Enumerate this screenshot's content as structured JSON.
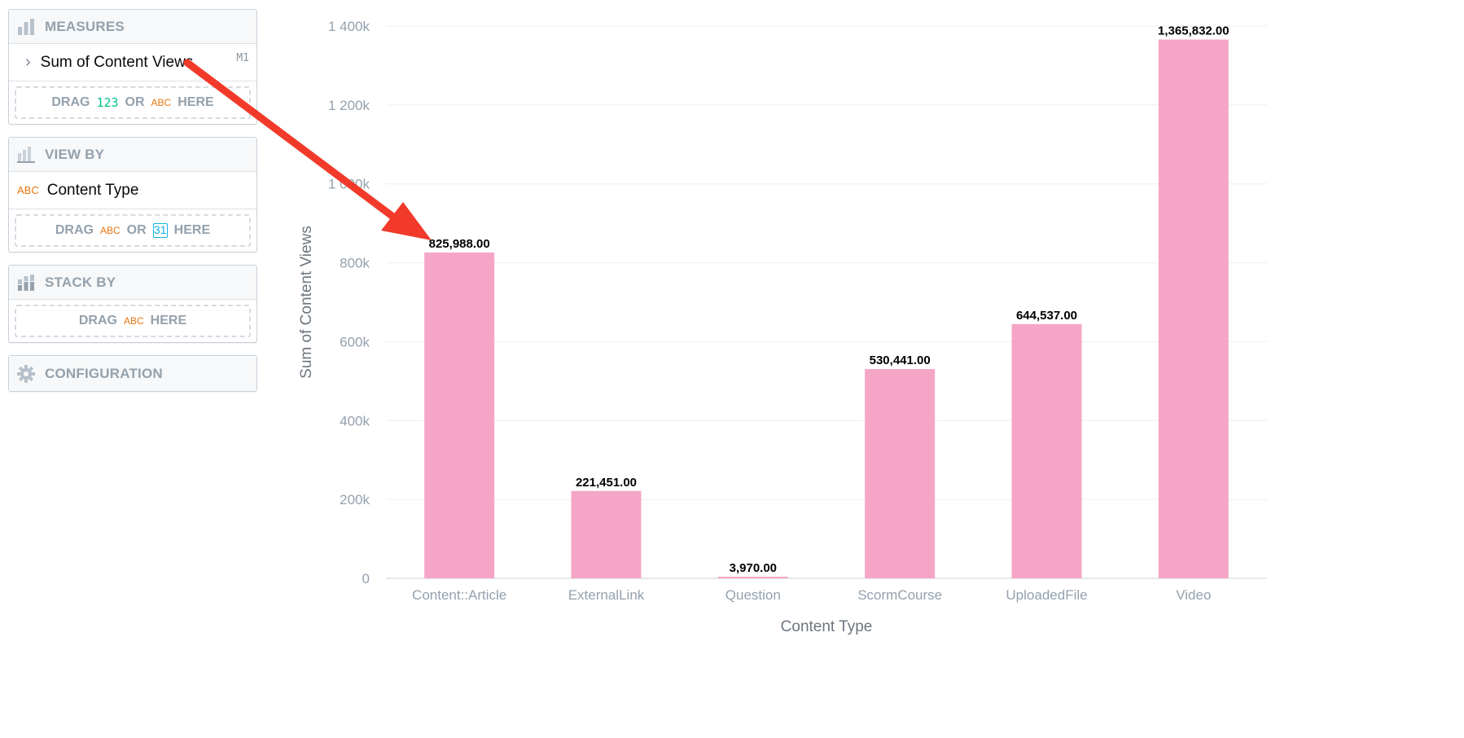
{
  "panel": {
    "measures": {
      "title": "MEASURES",
      "item_label": "Sum of Content Views",
      "item_badge": "M1",
      "drop": {
        "w1": "DRAG",
        "num": "123",
        "w2": "OR",
        "abc": "ABC",
        "w3": "HERE"
      }
    },
    "view_by": {
      "title": "VIEW BY",
      "item_type": "ABC",
      "item_label": "Content Type",
      "drop": {
        "w1": "DRAG",
        "abc": "ABC",
        "w2": "OR",
        "cal": "31",
        "w3": "HERE"
      }
    },
    "stack_by": {
      "title": "STACK BY",
      "drop": {
        "w1": "DRAG",
        "abc": "ABC",
        "w3": "HERE"
      }
    },
    "configuration": {
      "title": "CONFIGURATION"
    }
  },
  "chart_data": {
    "type": "bar",
    "categories": [
      "Content::Article",
      "ExternalLink",
      "Question",
      "ScormCourse",
      "UploadedFile",
      "Video"
    ],
    "values": [
      825988,
      221451,
      3970,
      530441,
      644537,
      1365832
    ],
    "data_labels": [
      "825,988.00",
      "221,451.00",
      "3,970.00",
      "530,441.00",
      "644,537.00",
      "1,365,832.00"
    ],
    "y_ticks": [
      0,
      200000,
      400000,
      600000,
      800000,
      1000000,
      1200000,
      1400000
    ],
    "y_tick_labels": [
      "0",
      "200k",
      "400k",
      "600k",
      "800k",
      "1 000k",
      "1 200k",
      "1 400k"
    ],
    "ylim": [
      0,
      1400000
    ],
    "xlabel": "Content Type",
    "ylabel": "Sum of Content Views",
    "bar_color": "#f5a6c6",
    "grid": true
  },
  "colors": {
    "arrow": "#f23a2a",
    "numeric_accent": "#00c18d",
    "attribute_accent": "#e8750f",
    "date_accent": "#14b2e2"
  }
}
